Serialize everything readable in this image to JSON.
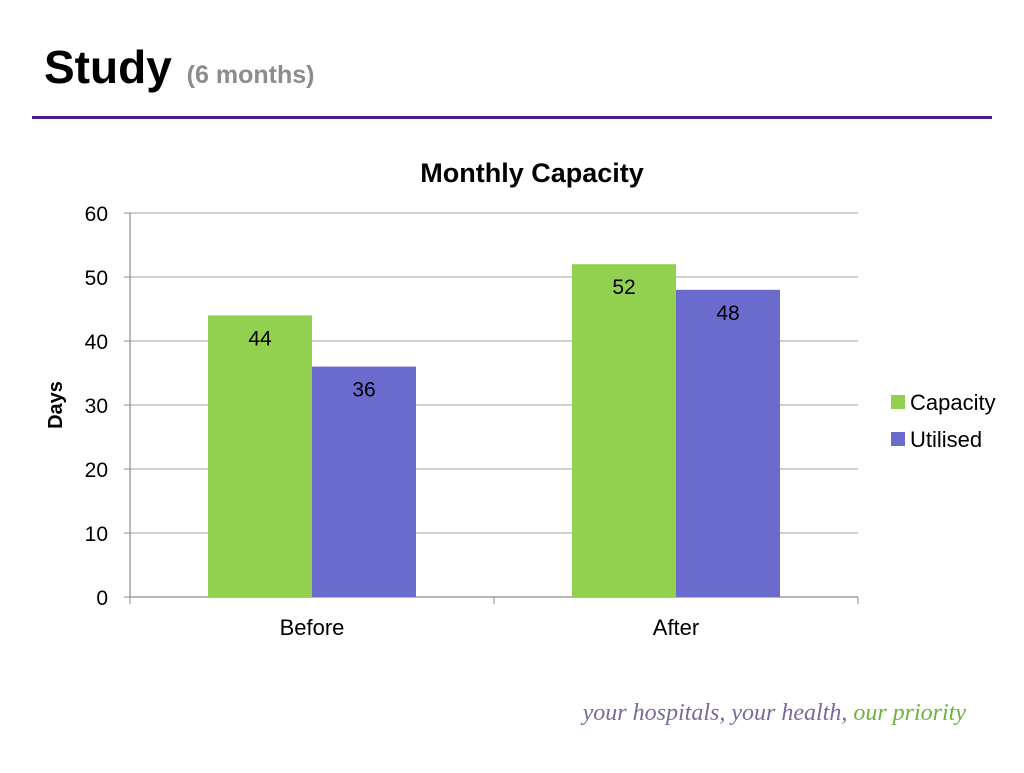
{
  "slide": {
    "title": "Study",
    "subtitle": "(6 months)",
    "tagline_prefix": "your hospitals, your health,",
    "tagline_accent": "our priority",
    "rule_color": "#4b1a8c"
  },
  "chart_data": {
    "type": "bar",
    "title": "Monthly Capacity",
    "xlabel": "",
    "ylabel": "Days",
    "categories": [
      "Before",
      "After"
    ],
    "series": [
      {
        "name": "Capacity",
        "values": [
          44,
          52
        ],
        "color": "#92d050"
      },
      {
        "name": "Utilised",
        "values": [
          36,
          48
        ],
        "color": "#6b6bce"
      }
    ],
    "ylim": [
      0,
      60
    ],
    "yticks": [
      0,
      10,
      20,
      30,
      40,
      50,
      60
    ],
    "grid": true,
    "legend": "right",
    "data_labels": true
  }
}
